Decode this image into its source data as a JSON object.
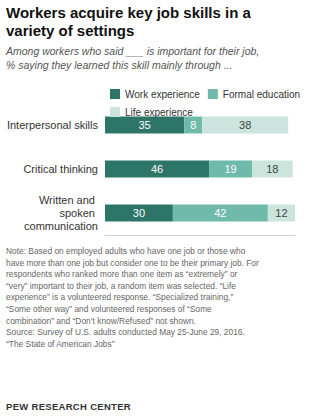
{
  "header": {
    "title": [
      "Workers acquire key job skills in a",
      "variety of settings"
    ],
    "subtitle": [
      "Among workers who said ___ is important for their job,",
      "% saying they learned this skill mainly through ..."
    ]
  },
  "chart_data": {
    "type": "bar",
    "orientation": "horizontal",
    "stacked": true,
    "categories": [
      "Interpersonal skills",
      "Critical thinking",
      "Written and spoken communication"
    ],
    "series": [
      {
        "name": "Work experience",
        "color": "#2d7567",
        "values": [
          35,
          46,
          30
        ]
      },
      {
        "name": "Formal education",
        "color": "#6fbaa8",
        "values": [
          8,
          19,
          42
        ]
      },
      {
        "name": "Life experience",
        "color": "#cbe5de",
        "values": [
          38,
          18,
          12
        ]
      }
    ],
    "xlim": [
      0,
      84
    ],
    "xticks": [],
    "tick_labels": "y",
    "grid": false,
    "legend": "top",
    "data_labels": true
  },
  "footer": {
    "note": [
      "Note: Based on employed adults who have one job or those who",
      "have more than one job but consider one to be their primary job. For",
      "respondents who ranked more than one item as “extremely” or",
      "“very” important to their job, a random item was selected. “Life",
      "experience” is a volunteered response. “Specialized training,”",
      "“Some other way” and volunteered responses of “Some",
      "combination” and “Don’t know/Refused” not shown.",
      "Source: Survey of U.S. adults conducted May 25-June 29, 2016.",
      "“The State of American Jobs”"
    ],
    "credit": "PEW RESEARCH CENTER"
  }
}
